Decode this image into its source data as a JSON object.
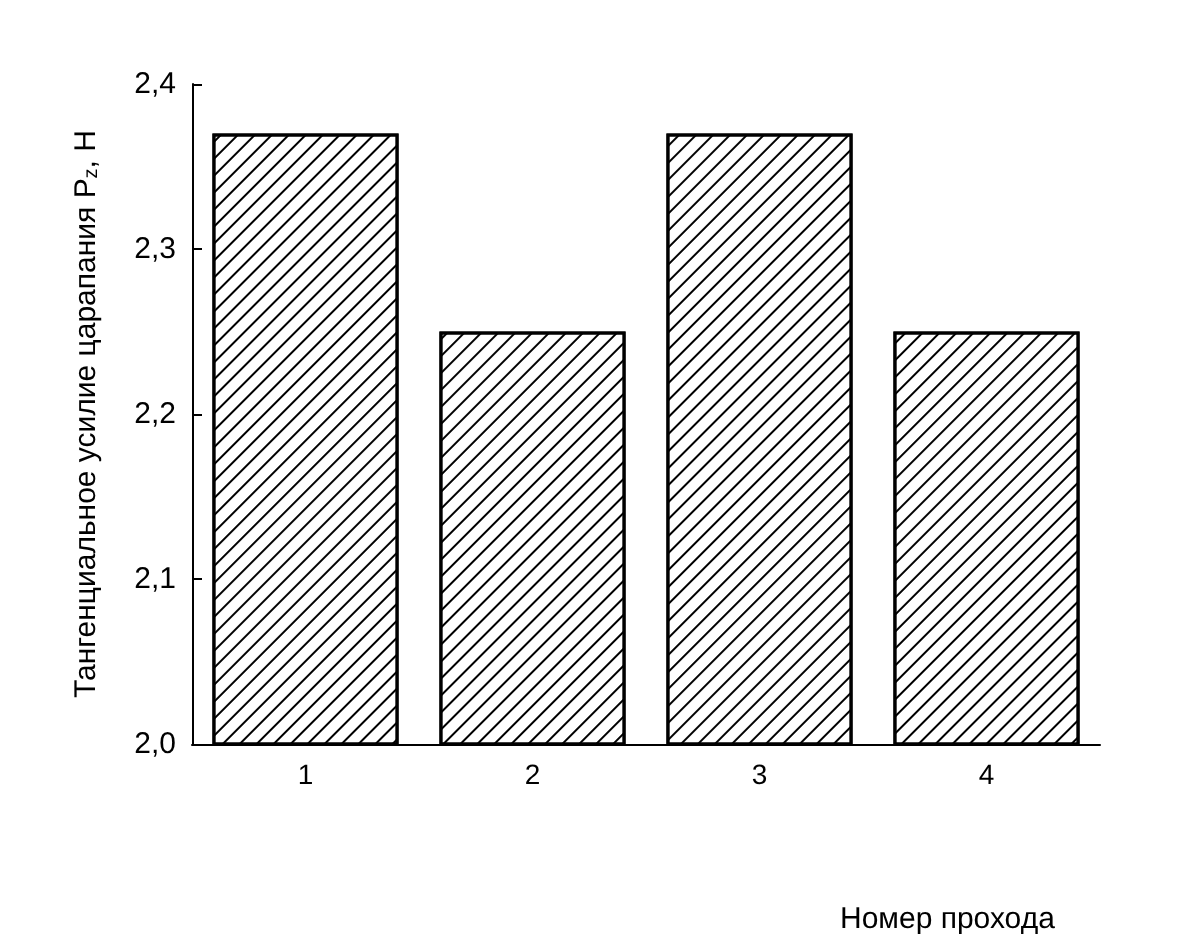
{
  "chart_data": {
    "type": "bar",
    "categories": [
      "1",
      "2",
      "3",
      "4"
    ],
    "values": [
      2.37,
      2.25,
      2.37,
      2.25
    ],
    "color": "#ffffff",
    "ylim": [
      2.0,
      2.4
    ],
    "yticks": [
      {
        "value": 2.0,
        "label": "2,0"
      },
      {
        "value": 2.1,
        "label": "2,1"
      },
      {
        "value": 2.2,
        "label": "2,2"
      },
      {
        "value": 2.3,
        "label": "2,3"
      },
      {
        "value": 2.4,
        "label": "2,4"
      }
    ],
    "xlabel": "Номер прохода",
    "ylabel": "Тангенциальное усилие царапания P$_{z}$, Н",
    "grid": false
  }
}
